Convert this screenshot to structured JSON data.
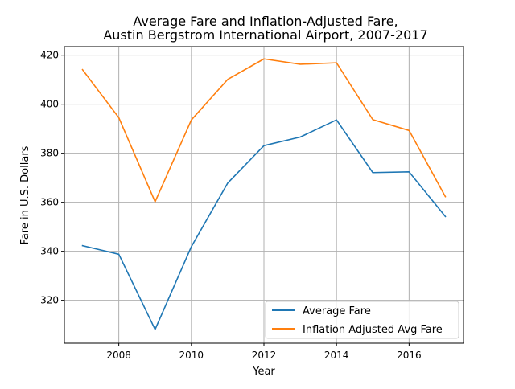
{
  "chart_data": {
    "type": "line",
    "title_lines": [
      "Average Fare and Inflation-Adjusted Fare,",
      "Austin Bergstrom International Airport, 2007-2017"
    ],
    "xlabel": "Year",
    "ylabel": "Fare in U.S. Dollars",
    "x": [
      2007,
      2008,
      2009,
      2010,
      2011,
      2012,
      2013,
      2014,
      2015,
      2016,
      2017
    ],
    "xlim": [
      2006.5,
      2017.5
    ],
    "ylim": [
      302.5,
      423.5
    ],
    "xticks": [
      2008,
      2010,
      2012,
      2014,
      2016
    ],
    "yticks": [
      320,
      340,
      360,
      380,
      400,
      420
    ],
    "grid": true,
    "legend_position": "lower-right",
    "series": [
      {
        "name": "Average Fare",
        "color": "#1f77b4",
        "values": [
          342.3,
          338.8,
          308.1,
          341.9,
          367.8,
          383.1,
          386.6,
          393.6,
          372.1,
          372.4,
          354.2
        ]
      },
      {
        "name": "Inflation Adjusted Avg Fare",
        "color": "#ff7f0e",
        "values": [
          414.1,
          394.5,
          360.2,
          393.6,
          410.1,
          418.5,
          416.3,
          416.9,
          393.7,
          389.3,
          362.3
        ]
      }
    ]
  }
}
